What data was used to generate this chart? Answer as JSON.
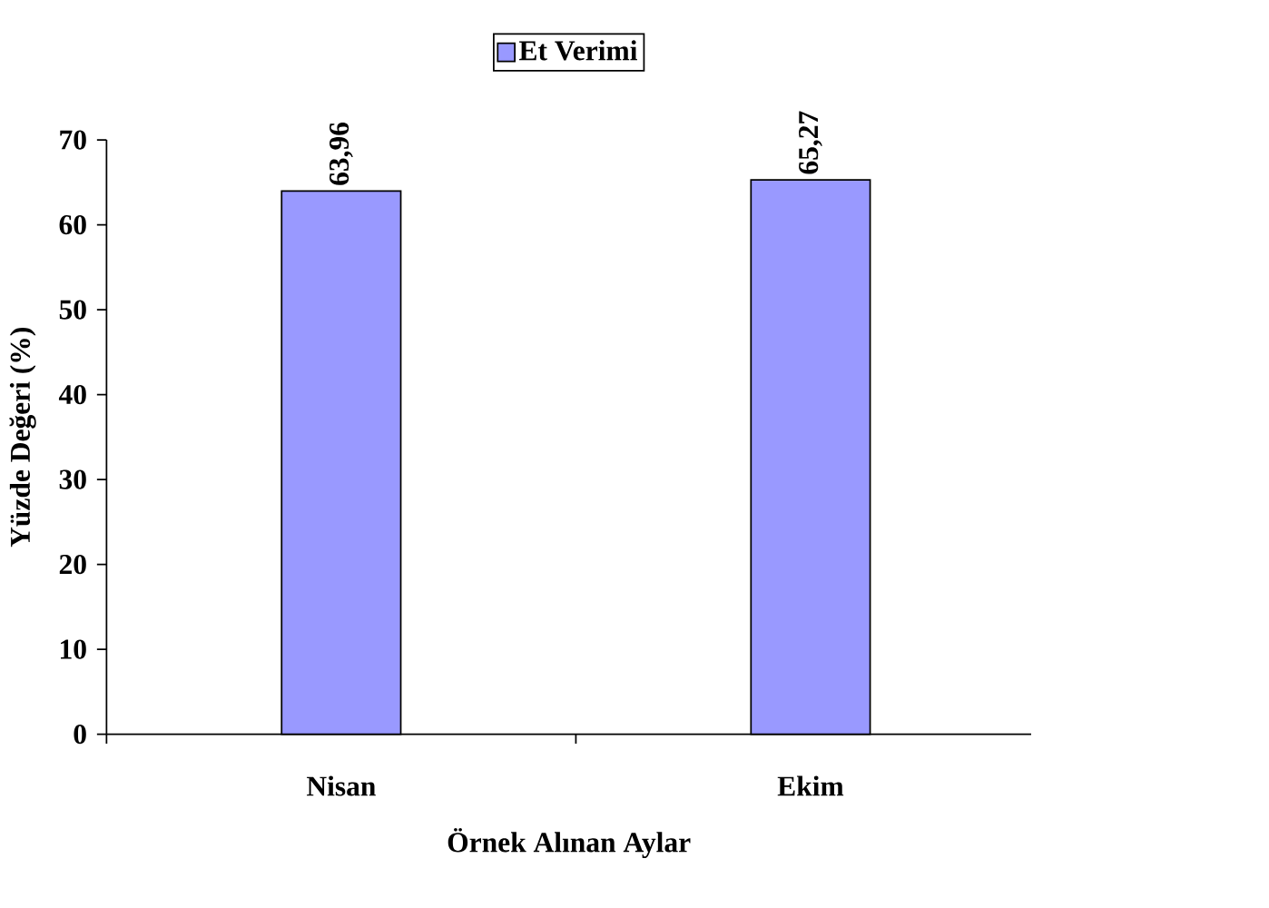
{
  "chart_data": {
    "type": "bar",
    "categories": [
      "Nisan",
      "Ekim"
    ],
    "series": [
      {
        "name": "Et Verimi",
        "color": "#9999ff",
        "values": [
          63.96,
          65.27
        ],
        "value_labels": [
          "63,96",
          "65,27"
        ]
      }
    ],
    "xlabel": "Örnek Alınan Aylar",
    "ylabel": "Yüzde Değeri (%)",
    "ylim": [
      0,
      70
    ],
    "yticks": [
      0,
      10,
      20,
      30,
      40,
      50,
      60,
      70
    ],
    "grid": false,
    "legend": "top"
  }
}
